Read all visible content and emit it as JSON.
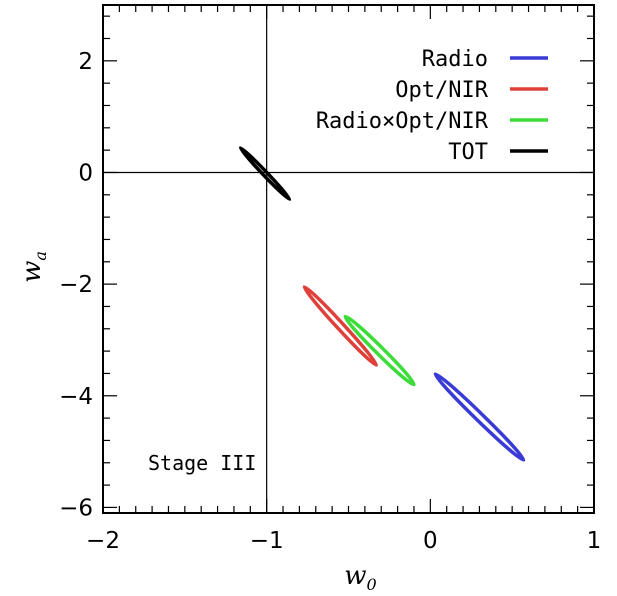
{
  "chart_data": {
    "type": "contour",
    "xlabel": "w",
    "xlabel_sub": "0",
    "ylabel": "w",
    "ylabel_sub": "a",
    "xlim": [
      -2,
      1
    ],
    "ylim": [
      -6.1,
      3.0
    ],
    "x_major_ticks": [
      -2,
      -1,
      0,
      1
    ],
    "x_tick_labels": [
      "−2",
      "−1",
      "0",
      "1"
    ],
    "x_minor_step": 0.1,
    "y_major_ticks": [
      -6,
      -4,
      -2,
      0,
      2
    ],
    "y_tick_labels": [
      "−6",
      "−4",
      "−2",
      "0",
      "2"
    ],
    "y_minor_step": 0.4,
    "reference_lines": {
      "x": -1,
      "y": 0
    },
    "legend_position": "top-right",
    "annotation": "Stage III",
    "series": [
      {
        "name": "Radio",
        "color": "#3a3ad6",
        "center": [
          0.3,
          -4.38
        ],
        "major_end": [
          0.57,
          -5.15
        ],
        "half_width": 0.045
      },
      {
        "name": "Opt/NIR",
        "color": "#e0403a",
        "center": [
          -0.55,
          -2.75
        ],
        "major_end": [
          -0.33,
          -3.45
        ],
        "half_width": 0.04
      },
      {
        "name": "Radio×Opt/NIR",
        "color": "#3ddc3a",
        "center": [
          -0.31,
          -3.19
        ],
        "major_end": [
          -0.1,
          -3.8
        ],
        "half_width": 0.045
      },
      {
        "name": "TOT",
        "color": "#000000",
        "center": [
          -1.01,
          -0.02
        ],
        "major_end": [
          -0.86,
          -0.48
        ],
        "half_width": 0.025
      }
    ]
  }
}
